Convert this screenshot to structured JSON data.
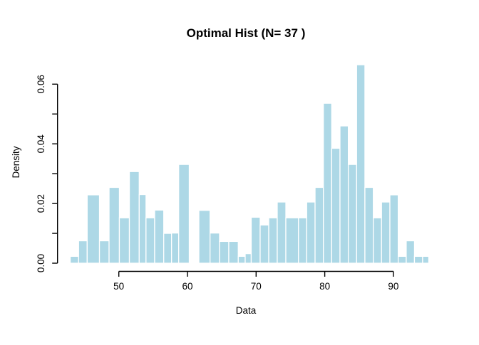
{
  "title": "Optimal Hist (N= 37 )",
  "colors": {
    "bar_fill": "#ADD8E6",
    "bar_border": "#FFFFFF",
    "axis": "#000000",
    "background": "#FFFFFF"
  },
  "chart_data": {
    "type": "bar",
    "subtype": "histogram-variable-bins",
    "title": "Optimal Hist (N= 37 )",
    "xlabel": "Data",
    "ylabel": "Density",
    "x_ticks": [
      50,
      60,
      70,
      80,
      90
    ],
    "y_ticks": [
      0,
      0.01,
      0.02,
      0.03,
      0.04,
      0.05,
      0.06
    ],
    "y_tick_labeled": [
      0,
      0.02,
      0.04,
      0.06
    ],
    "y_tick_label_format": [
      "0.00",
      "0.02",
      "0.04",
      "0.06"
    ],
    "xlim": [
      41.5,
      96.5
    ],
    "ylim": [
      0,
      0.0695
    ],
    "grid": false,
    "legend": null,
    "bars": [
      {
        "x0": 42.92,
        "x1": 44.14,
        "density": 0.0023
      },
      {
        "x0": 44.14,
        "x1": 45.39,
        "density": 0.0075
      },
      {
        "x0": 45.39,
        "x1": 47.18,
        "density": 0.0229
      },
      {
        "x0": 47.18,
        "x1": 48.58,
        "density": 0.0075
      },
      {
        "x0": 48.58,
        "x1": 50.08,
        "density": 0.0254
      },
      {
        "x0": 50.08,
        "x1": 51.54,
        "density": 0.0152
      },
      {
        "x0": 51.54,
        "x1": 52.97,
        "density": 0.0307
      },
      {
        "x0": 52.97,
        "x1": 53.96,
        "density": 0.023
      },
      {
        "x0": 53.96,
        "x1": 55.22,
        "density": 0.0152
      },
      {
        "x0": 55.22,
        "x1": 56.54,
        "density": 0.0178
      },
      {
        "x0": 56.54,
        "x1": 57.68,
        "density": 0.01
      },
      {
        "x0": 57.68,
        "x1": 58.72,
        "density": 0.0101
      },
      {
        "x0": 58.72,
        "x1": 60.26,
        "density": 0.0331
      },
      {
        "x0": 61.66,
        "x1": 63.29,
        "density": 0.0177
      },
      {
        "x0": 63.29,
        "x1": 64.67,
        "density": 0.0101
      },
      {
        "x0": 64.67,
        "x1": 66.02,
        "density": 0.0073
      },
      {
        "x0": 66.02,
        "x1": 67.4,
        "density": 0.0073
      },
      {
        "x0": 67.4,
        "x1": 68.41,
        "density": 0.0023
      },
      {
        "x0": 68.41,
        "x1": 69.29,
        "density": 0.0032
      },
      {
        "x0": 69.29,
        "x1": 70.59,
        "density": 0.0154
      },
      {
        "x0": 70.59,
        "x1": 71.84,
        "density": 0.0128
      },
      {
        "x0": 71.84,
        "x1": 73.08,
        "density": 0.0152
      },
      {
        "x0": 73.08,
        "x1": 74.33,
        "density": 0.0205
      },
      {
        "x0": 74.33,
        "x1": 76.17,
        "density": 0.0152
      },
      {
        "x0": 76.17,
        "x1": 77.37,
        "density": 0.0152
      },
      {
        "x0": 77.37,
        "x1": 78.59,
        "density": 0.0205
      },
      {
        "x0": 78.59,
        "x1": 79.8,
        "density": 0.0254
      },
      {
        "x0": 79.8,
        "x1": 81.01,
        "density": 0.0536
      },
      {
        "x0": 81.01,
        "x1": 82.22,
        "density": 0.0385
      },
      {
        "x0": 82.22,
        "x1": 83.43,
        "density": 0.046
      },
      {
        "x0": 83.43,
        "x1": 84.64,
        "density": 0.0331
      },
      {
        "x0": 84.64,
        "x1": 85.85,
        "density": 0.0665
      },
      {
        "x0": 85.85,
        "x1": 87.07,
        "density": 0.0254
      },
      {
        "x0": 87.07,
        "x1": 88.27,
        "density": 0.0152
      },
      {
        "x0": 88.27,
        "x1": 89.49,
        "density": 0.0205
      },
      {
        "x0": 89.49,
        "x1": 90.7,
        "density": 0.0229
      },
      {
        "x0": 90.7,
        "x1": 91.87,
        "density": 0.0023
      },
      {
        "x0": 91.87,
        "x1": 93.07,
        "density": 0.0075
      },
      {
        "x0": 93.07,
        "x1": 94.26,
        "density": 0.0023
      },
      {
        "x0": 94.26,
        "x1": 95.15,
        "density": 0.0023
      }
    ]
  }
}
